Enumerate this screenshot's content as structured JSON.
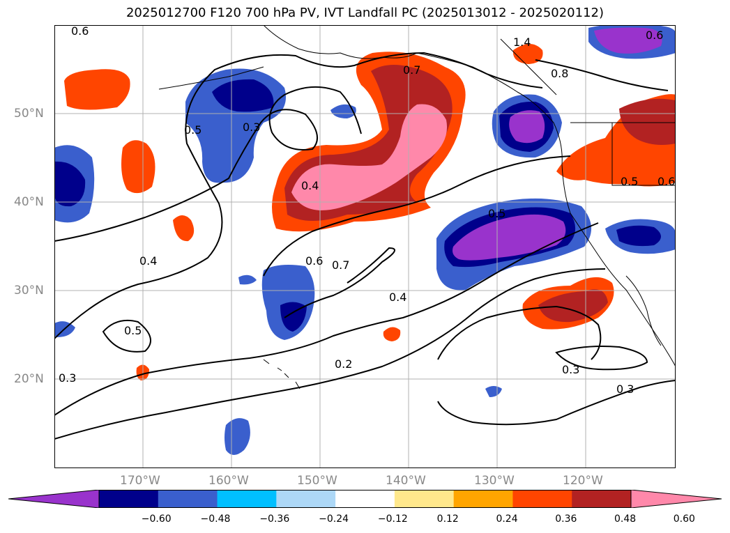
{
  "title": "2025012700 F120 700 hPa PV, IVT Landfall PC (2025013012 - 2025020112)",
  "lat_labels": [
    "50°N",
    "40°N",
    "30°N",
    "20°N"
  ],
  "lon_labels": [
    "170°W",
    "160°W",
    "150°W",
    "140°W",
    "130°W",
    "120°W"
  ],
  "contour_labels": [
    "0.6",
    "1.4",
    "0.7",
    "0.8",
    "0.5",
    "0.3",
    "0.4",
    "0.5",
    "0.6",
    "0.4",
    "0.6",
    "0.7",
    "0.4",
    "0.5",
    "0.2",
    "0.3",
    "0.3",
    "0.3",
    "0.5",
    "0.6"
  ],
  "colorbar": {
    "ticks": [
      "−0.60",
      "−0.48",
      "−0.36",
      "−0.24",
      "−0.12",
      "0.12",
      "0.24",
      "0.36",
      "0.48",
      "0.60"
    ],
    "colors": [
      "#9933cc",
      "#00008b",
      "#3a5fcd",
      "#00bfff",
      "#add8f7",
      "#ffffff",
      "#ffe88c",
      "#ffa500",
      "#ff4500",
      "#b22222",
      "#ff88aa"
    ]
  }
}
